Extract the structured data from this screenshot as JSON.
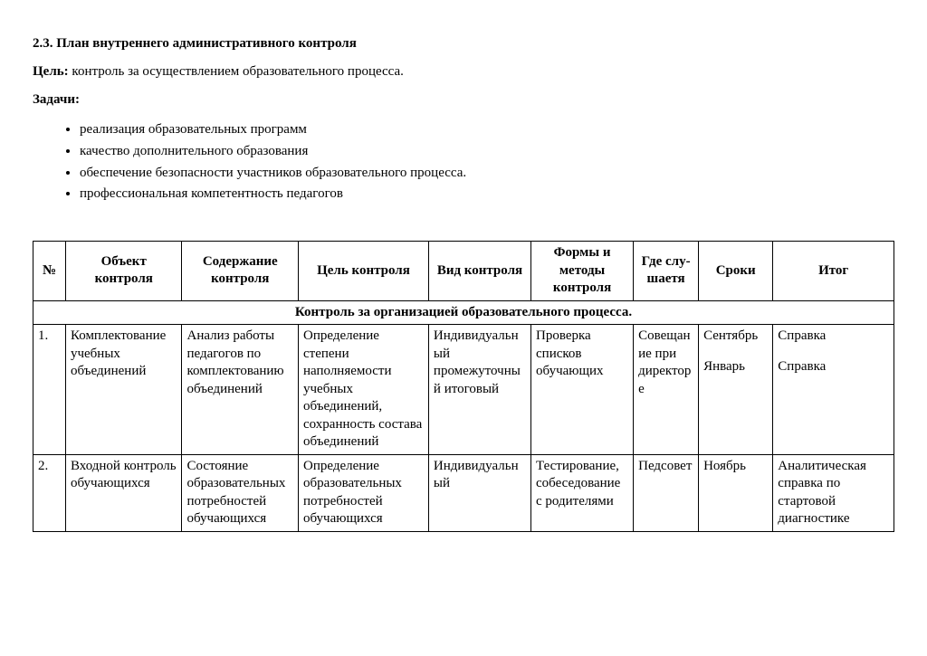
{
  "heading": "2.3. План внутреннего административного контроля",
  "goal_label": "Цель:",
  "goal_text": " контроль за осуществлением образовательного процесса.",
  "tasks_label": "Задачи:",
  "tasks": [
    "реализация образовательных программ",
    "качество дополнительного образования",
    "обеспечение безопасности участников образовательного процесса.",
    "профессиональная компетентность педагогов"
  ],
  "table": {
    "columns": [
      "№",
      "Объект контроля",
      "Содержание контроля",
      "Цель контроля",
      "Вид контроля",
      "Формы и методы контроля",
      "Где слу-шаетя",
      "Сроки",
      "Итог"
    ],
    "section_title": "Контроль за организацией образовательного процесса.",
    "rows": [
      {
        "num": "1.",
        "object": "Комплектование учебных объединений",
        "content": "Анализ работы педагогов по комплектованию объединений",
        "goal": "Определение степени наполняемости учебных объединений, сохранность состава объединений",
        "type": "Индивидуальный промежуточный итоговый",
        "forms": "Проверка списков обучающих",
        "where": "Совещание при директоре",
        "time_lines": [
          "Сентябрь",
          "Январь"
        ],
        "result_lines": [
          "Справка",
          "Справка"
        ]
      },
      {
        "num": "2.",
        "object": "Входной контроль обучающихся",
        "content": " Состояние образовательных потребностей обучающихся",
        "goal": "Определение образовательных потребностей обучающихся",
        "type": "Индивидуальный",
        "forms": "Тестирование, собеседование с родителями",
        "where": "Педсовет",
        "time_lines": [
          "Ноябрь"
        ],
        "result_lines": [
          "Аналитическая справка по стартовой диагностике"
        ]
      }
    ]
  }
}
